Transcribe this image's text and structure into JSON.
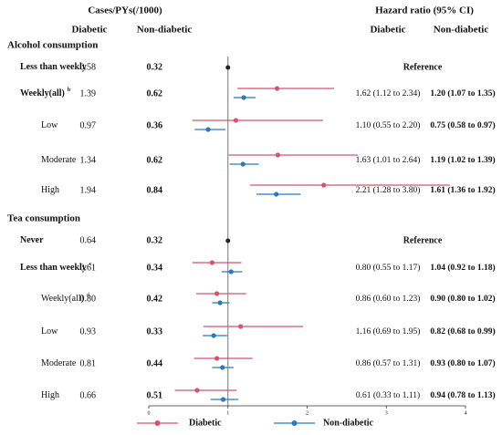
{
  "chart_data": {
    "type": "forest",
    "cases_header": "Cases/PYs(/1000)",
    "hr_header": "Hazard ratio (95% CI)",
    "series": [
      {
        "name": "Diabetic",
        "color": "#d6536d"
      },
      {
        "name": "Non-diabetic",
        "color": "#2a7ac0"
      }
    ],
    "reference_value": 1,
    "reference_color": "#222222",
    "xlim": [
      0,
      4
    ],
    "xticks": [
      0,
      1,
      2,
      3,
      4
    ],
    "groups": [
      {
        "title": "Alcohol consumption",
        "reference_label": "Reference",
        "categories": [
          "Less than weekly",
          "Weekly(all)",
          "Low",
          "Moderate",
          "High"
        ],
        "notes": [
          null,
          "b",
          null,
          null,
          null
        ],
        "cases": [
          [
            "0.58",
            "1.39",
            "0.97",
            "1.34",
            "1.94"
          ],
          [
            "0.32",
            "0.62",
            "0.36",
            "0.62",
            "0.84"
          ]
        ],
        "series": [
          {
            "values": [
              null,
              1.62,
              1.1,
              1.63,
              2.21
            ],
            "lower": [
              null,
              1.12,
              0.55,
              1.01,
              1.28
            ],
            "upper": [
              null,
              2.34,
              2.2,
              2.64,
              3.8
            ],
            "value_labels": [
              null,
              "1.62 (1.12 to 2.34)",
              "1.10 (0.55 to 2.20)",
              "1.63 (1.01 to 2.64)",
              "2.21 (1.28 to 3.80)"
            ]
          },
          {
            "values": [
              null,
              1.2,
              0.75,
              1.19,
              1.61
            ],
            "lower": [
              null,
              1.07,
              0.58,
              1.02,
              1.36
            ],
            "upper": [
              null,
              1.35,
              0.97,
              1.39,
              1.92
            ],
            "value_labels": [
              null,
              "1.20 (1.07 to 1.35)",
              "0.75 (0.58 to 0.97)",
              "1.19 (1.02 to 1.39)",
              "1.61 (1.36 to 1.92)"
            ]
          }
        ]
      },
      {
        "title": "Tea consumption",
        "reference_label": "Reference",
        "categories": [
          "Never",
          "Less than weekly",
          "Weekly(all)",
          "Low",
          "Moderate",
          "High"
        ],
        "notes": [
          null,
          "c",
          "d",
          null,
          null,
          null
        ],
        "cases": [
          [
            "0.64",
            "0.61",
            "0.80",
            "0.93",
            "0.81",
            "0.66"
          ],
          [
            "0.32",
            "0.34",
            "0.42",
            "0.33",
            "0.44",
            "0.51"
          ]
        ],
        "series": [
          {
            "values": [
              null,
              0.8,
              0.86,
              1.16,
              0.86,
              0.61
            ],
            "lower": [
              null,
              0.55,
              0.6,
              0.69,
              0.57,
              0.33
            ],
            "upper": [
              null,
              1.17,
              1.23,
              1.95,
              1.31,
              1.11
            ],
            "value_labels": [
              null,
              "0.80 (0.55 to 1.17)",
              "0.86 (0.60 to 1.23)",
              "1.16 (0.69 to 1.95)",
              "0.86 (0.57 to 1.31)",
              "0.61 (0.33 to 1.11)"
            ]
          },
          {
            "values": [
              null,
              1.04,
              0.9,
              0.82,
              0.93,
              0.94
            ],
            "lower": [
              null,
              0.92,
              0.8,
              0.68,
              0.8,
              0.78
            ],
            "upper": [
              null,
              1.18,
              1.02,
              0.99,
              1.07,
              1.13
            ],
            "value_labels": [
              null,
              "1.04 (0.92 to 1.18)",
              "0.90 (0.80 to 1.02)",
              "0.82 (0.68 to 0.99)",
              "0.93 (0.80 to 1.07)",
              "0.94 (0.78 to 1.13)"
            ]
          }
        ]
      }
    ]
  }
}
